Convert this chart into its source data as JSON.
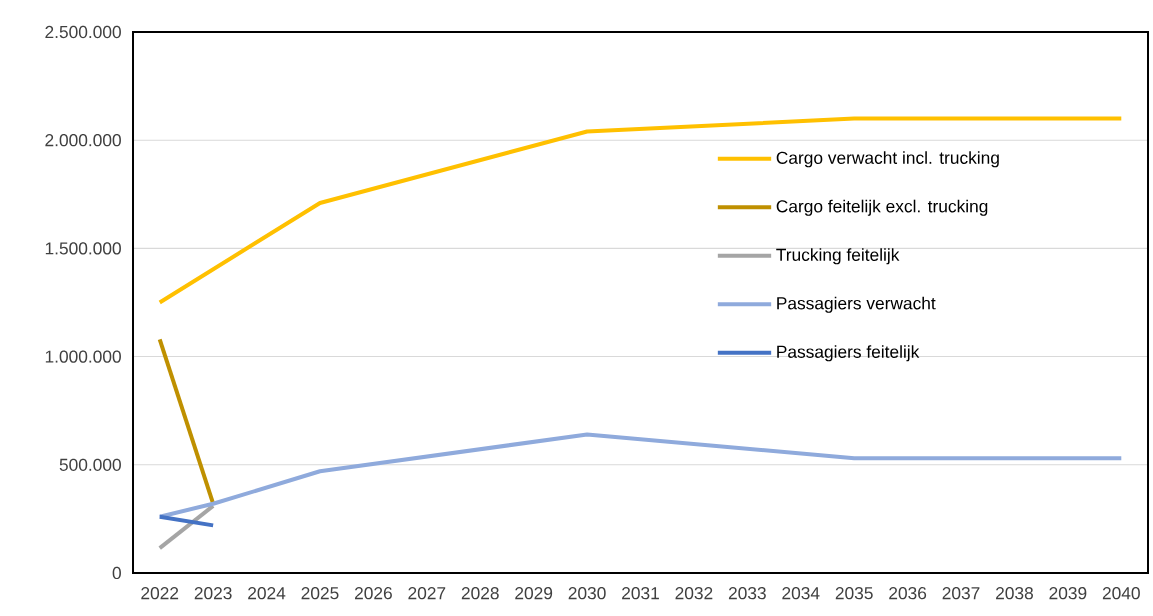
{
  "chart_data": {
    "type": "line",
    "xlim": [
      2021.5,
      2040.5
    ],
    "xticks": [
      2022,
      2023,
      2024,
      2025,
      2026,
      2027,
      2028,
      2029,
      2030,
      2031,
      2032,
      2033,
      2034,
      2035,
      2036,
      2037,
      2038,
      2039,
      2040
    ],
    "ylim": [
      0,
      2500000
    ],
    "yticks": [
      {
        "value": 0,
        "label": "0"
      },
      {
        "value": 500000,
        "label": "500.000"
      },
      {
        "value": 1000000,
        "label": "1.000.000"
      },
      {
        "value": 1500000,
        "label": "1.500.000"
      },
      {
        "value": 2000000,
        "label": "2.000.000"
      },
      {
        "value": 2500000,
        "label": "2.500.000"
      }
    ],
    "grid": "y",
    "legend": "right",
    "series": [
      {
        "name": "Cargo verwacht incl. trucking",
        "color": "#ffc000",
        "x": [
          2022,
          2025,
          2030,
          2035,
          2040
        ],
        "values": [
          1250000,
          1710000,
          2040000,
          2100000,
          2100000
        ]
      },
      {
        "name": "Cargo feitelijk excl. trucking",
        "color": "#bf9000",
        "x": [
          2022,
          2023
        ],
        "values": [
          1080000,
          320000
        ]
      },
      {
        "name": "Trucking feitelijk",
        "color": "#a5a5a5",
        "x": [
          2022,
          2023
        ],
        "values": [
          115000,
          310000
        ]
      },
      {
        "name": "Passagiers verwacht",
        "color": "#8faadc",
        "x": [
          2022,
          2023,
          2025,
          2030,
          2035,
          2040
        ],
        "values": [
          260000,
          320000,
          470000,
          640000,
          530000,
          530000
        ]
      },
      {
        "name": "Passagiers feitelijk",
        "color": "#4472c4",
        "x": [
          2022,
          2023
        ],
        "values": [
          260000,
          220000
        ]
      }
    ]
  }
}
